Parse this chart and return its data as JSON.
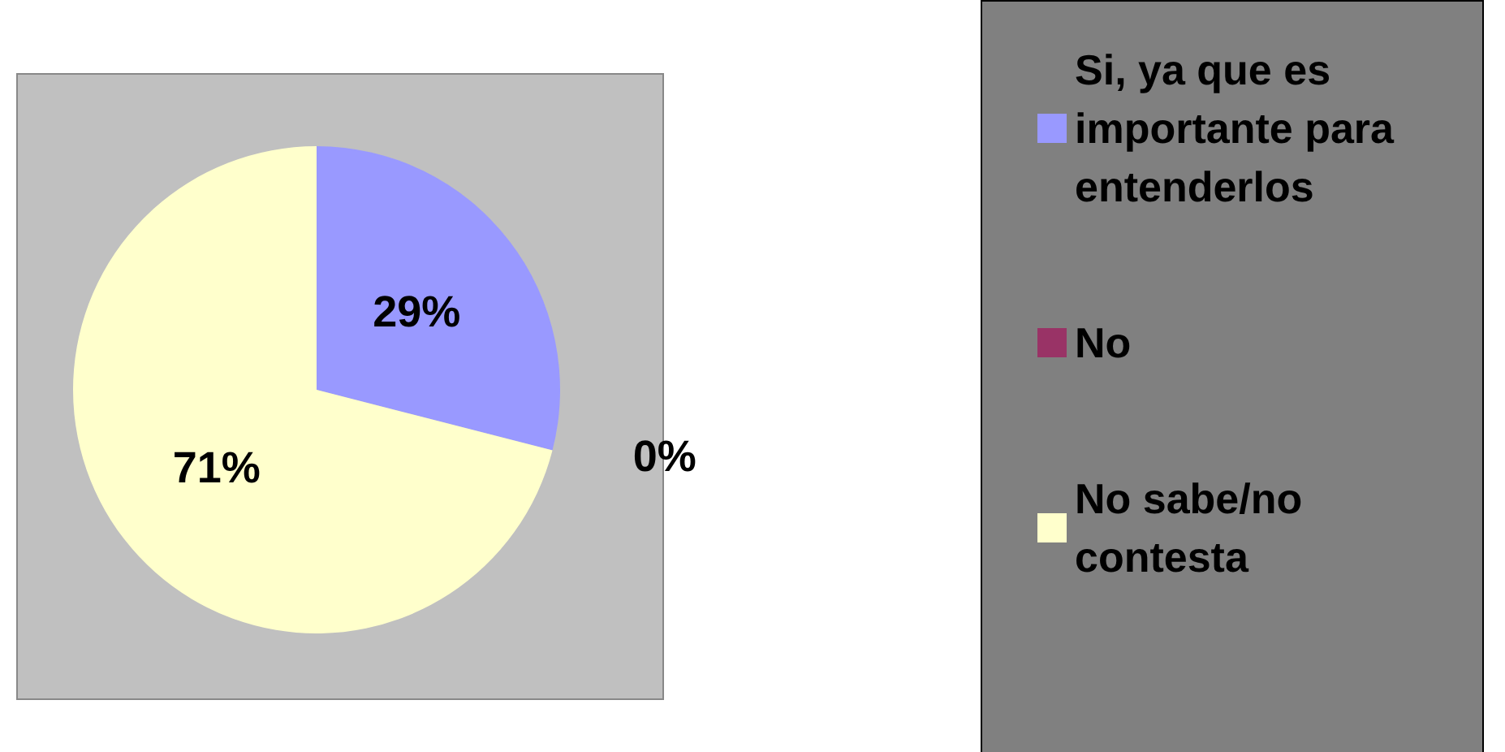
{
  "chart_data": {
    "type": "pie",
    "categories": [
      "Si, ya que es importante para entenderlos",
      "No",
      "No sabe/no contesta"
    ],
    "values": [
      29,
      0,
      71
    ],
    "colors": [
      "#9999ff",
      "#993366",
      "#ffffcc"
    ],
    "value_labels": [
      "29%",
      "0%",
      "71%"
    ],
    "legend": "right"
  }
}
